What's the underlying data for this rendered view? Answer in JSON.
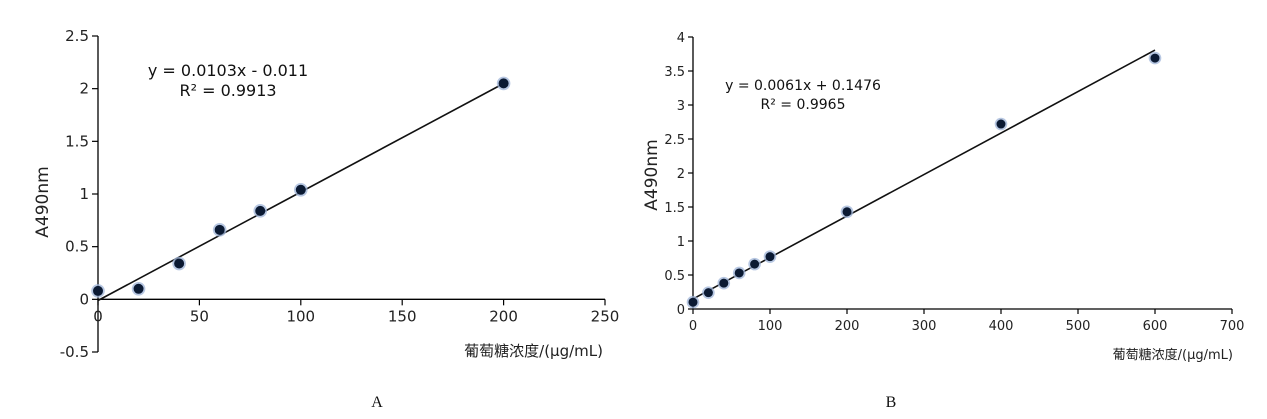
{
  "chart_data": [
    {
      "type": "scatter",
      "panel_label": "A",
      "title": "",
      "xlabel": "葡萄糖浓度/(μg/mL)",
      "ylabel": "A490nm",
      "xlim": [
        0,
        250
      ],
      "ylim": [
        -0.5,
        2.5
      ],
      "xticks": [
        0,
        50,
        100,
        150,
        200,
        250
      ],
      "yticks": [
        -0.5,
        0,
        0.5,
        1,
        1.5,
        2,
        2.5
      ],
      "x": [
        0,
        20,
        40,
        60,
        80,
        100,
        200
      ],
      "y": [
        0.08,
        0.1,
        0.34,
        0.66,
        0.84,
        1.04,
        2.05
      ],
      "trendline": {
        "slope": 0.0103,
        "intercept": -0.011,
        "x_range": [
          0,
          200
        ]
      },
      "equation": "y = 0.0103x - 0.011",
      "r_squared": "R² = 0.9913",
      "grid": false
    },
    {
      "type": "scatter",
      "panel_label": "B",
      "title": "",
      "xlabel": "葡萄糖浓度/(μg/mL)",
      "ylabel": "A490nm",
      "xlim": [
        0,
        700
      ],
      "ylim": [
        0,
        4
      ],
      "xticks": [
        0,
        100,
        200,
        300,
        400,
        500,
        600,
        700
      ],
      "yticks": [
        0,
        0.5,
        1,
        1.5,
        2,
        2.5,
        3,
        3.5,
        4
      ],
      "x": [
        0,
        20,
        40,
        60,
        80,
        100,
        200,
        400,
        600
      ],
      "y": [
        0.1,
        0.24,
        0.38,
        0.53,
        0.66,
        0.77,
        1.43,
        2.72,
        3.69
      ],
      "trendline": {
        "slope": 0.0061,
        "intercept": 0.1476,
        "x_range": [
          0,
          600
        ]
      },
      "equation": "y = 0.0061x + 0.1476",
      "r_squared": "R² = 0.9965",
      "grid": false
    }
  ]
}
